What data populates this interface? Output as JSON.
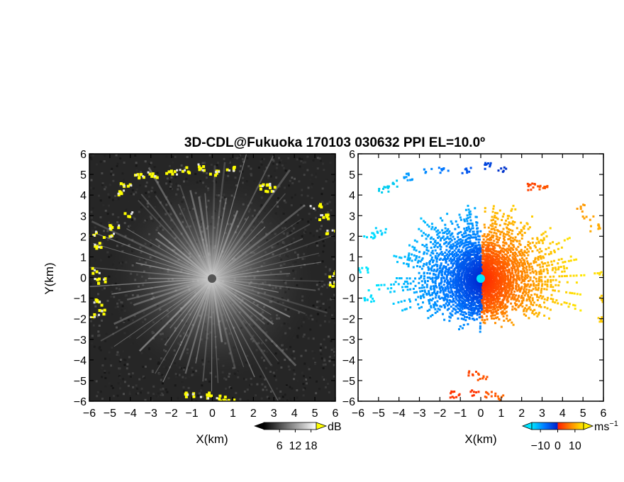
{
  "figure": {
    "title": "3D-CDL@Fukuoka 170103 030632 PPI EL=10.0º"
  },
  "chart_data": [
    {
      "type": "heatmap",
      "name": "snr-panel",
      "xlabel": "X(km)",
      "ylabel": "Y(km)",
      "xlim": [
        -6,
        6
      ],
      "ylim": [
        -6,
        6
      ],
      "x_ticks": [
        -6,
        -5,
        -4,
        -3,
        -2,
        -1,
        0,
        1,
        2,
        3,
        4,
        5,
        6
      ],
      "y_ticks": [
        -6,
        -5,
        -4,
        -3,
        -2,
        -1,
        0,
        1,
        2,
        3,
        4,
        5,
        6
      ],
      "background_color": "#262626",
      "highlight_color": "#ffff00",
      "colorbar": {
        "unit": "dB",
        "tick_labels": [
          "6",
          "12",
          "18"
        ],
        "tick_values": [
          6,
          12,
          18
        ],
        "range": [
          0,
          20
        ],
        "colors": [
          "#000000",
          "#ffffff"
        ]
      }
    },
    {
      "type": "heatmap",
      "name": "velocity-panel",
      "xlabel": "X(km)",
      "ylabel": "",
      "xlim": [
        -6,
        6
      ],
      "ylim": [
        -6,
        6
      ],
      "x_ticks": [
        -6,
        -5,
        -4,
        -3,
        -2,
        -1,
        0,
        1,
        2,
        3,
        4,
        5,
        6
      ],
      "y_ticks": [
        -6,
        -5,
        -4,
        -3,
        -2,
        -1,
        0,
        1,
        2,
        3,
        4,
        5,
        6
      ],
      "colorbar": {
        "unit": "ms",
        "unit_exponent": "−1",
        "tick_labels": [
          "−10",
          "0",
          "10"
        ],
        "tick_values": [
          -10,
          0,
          10
        ],
        "range": [
          -15,
          15
        ],
        "colors": [
          "#00e5ff",
          "#0066ff",
          "#0022cc",
          "#ff2200",
          "#ff8800",
          "#ffee00"
        ]
      }
    }
  ]
}
